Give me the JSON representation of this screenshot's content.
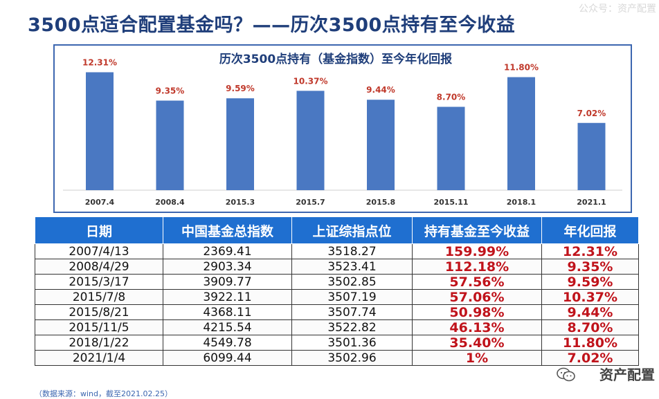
{
  "title": "3500点适合配置基金吗？——历次3500点持有至今收益",
  "watermark_top": "公众号：资产配置",
  "bottom_watermark": "资产配置",
  "chart_data": {
    "type": "bar",
    "title": "历次3500点持有（基金指数）至今年化回报",
    "categories": [
      "2007.4",
      "2008.4",
      "2015.3",
      "2015.7",
      "2015.8",
      "2015.11",
      "2018.1",
      "2021.1"
    ],
    "values": [
      12.31,
      9.35,
      9.59,
      10.37,
      9.44,
      8.7,
      11.8,
      7.02
    ],
    "data_labels": [
      "12.31%",
      "9.35%",
      "9.59%",
      "10.37%",
      "9.44%",
      "8.70%",
      "11.80%",
      "7.02%"
    ],
    "ylim": [
      0,
      13.5
    ],
    "bar_color": "#4a78c2",
    "label_color": "#c0392b"
  },
  "table": {
    "headers": [
      "日期",
      "中国基金总指数",
      "上证综指点位",
      "持有基金至今收益",
      "年化回报"
    ],
    "rows": [
      [
        "2007/4/13",
        "2369.41",
        "3518.27",
        "159.99%",
        "12.31%"
      ],
      [
        "2008/4/29",
        "2903.34",
        "3523.41",
        "112.18%",
        "9.35%"
      ],
      [
        "2015/3/17",
        "3909.77",
        "3502.85",
        "57.56%",
        "9.59%"
      ],
      [
        "2015/7/8",
        "3922.11",
        "3507.19",
        "57.06%",
        "10.37%"
      ],
      [
        "2015/8/21",
        "4368.11",
        "3507.74",
        "50.98%",
        "9.44%"
      ],
      [
        "2015/11/5",
        "4215.54",
        "3522.82",
        "46.13%",
        "8.70%"
      ],
      [
        "2018/1/22",
        "4549.78",
        "3501.36",
        "35.40%",
        "11.80%"
      ],
      [
        "2021/1/4",
        "6099.44",
        "3502.96",
        "1%",
        "7.02%"
      ]
    ]
  },
  "source_note": "（数据来源：wind，截至2021.02.25）"
}
